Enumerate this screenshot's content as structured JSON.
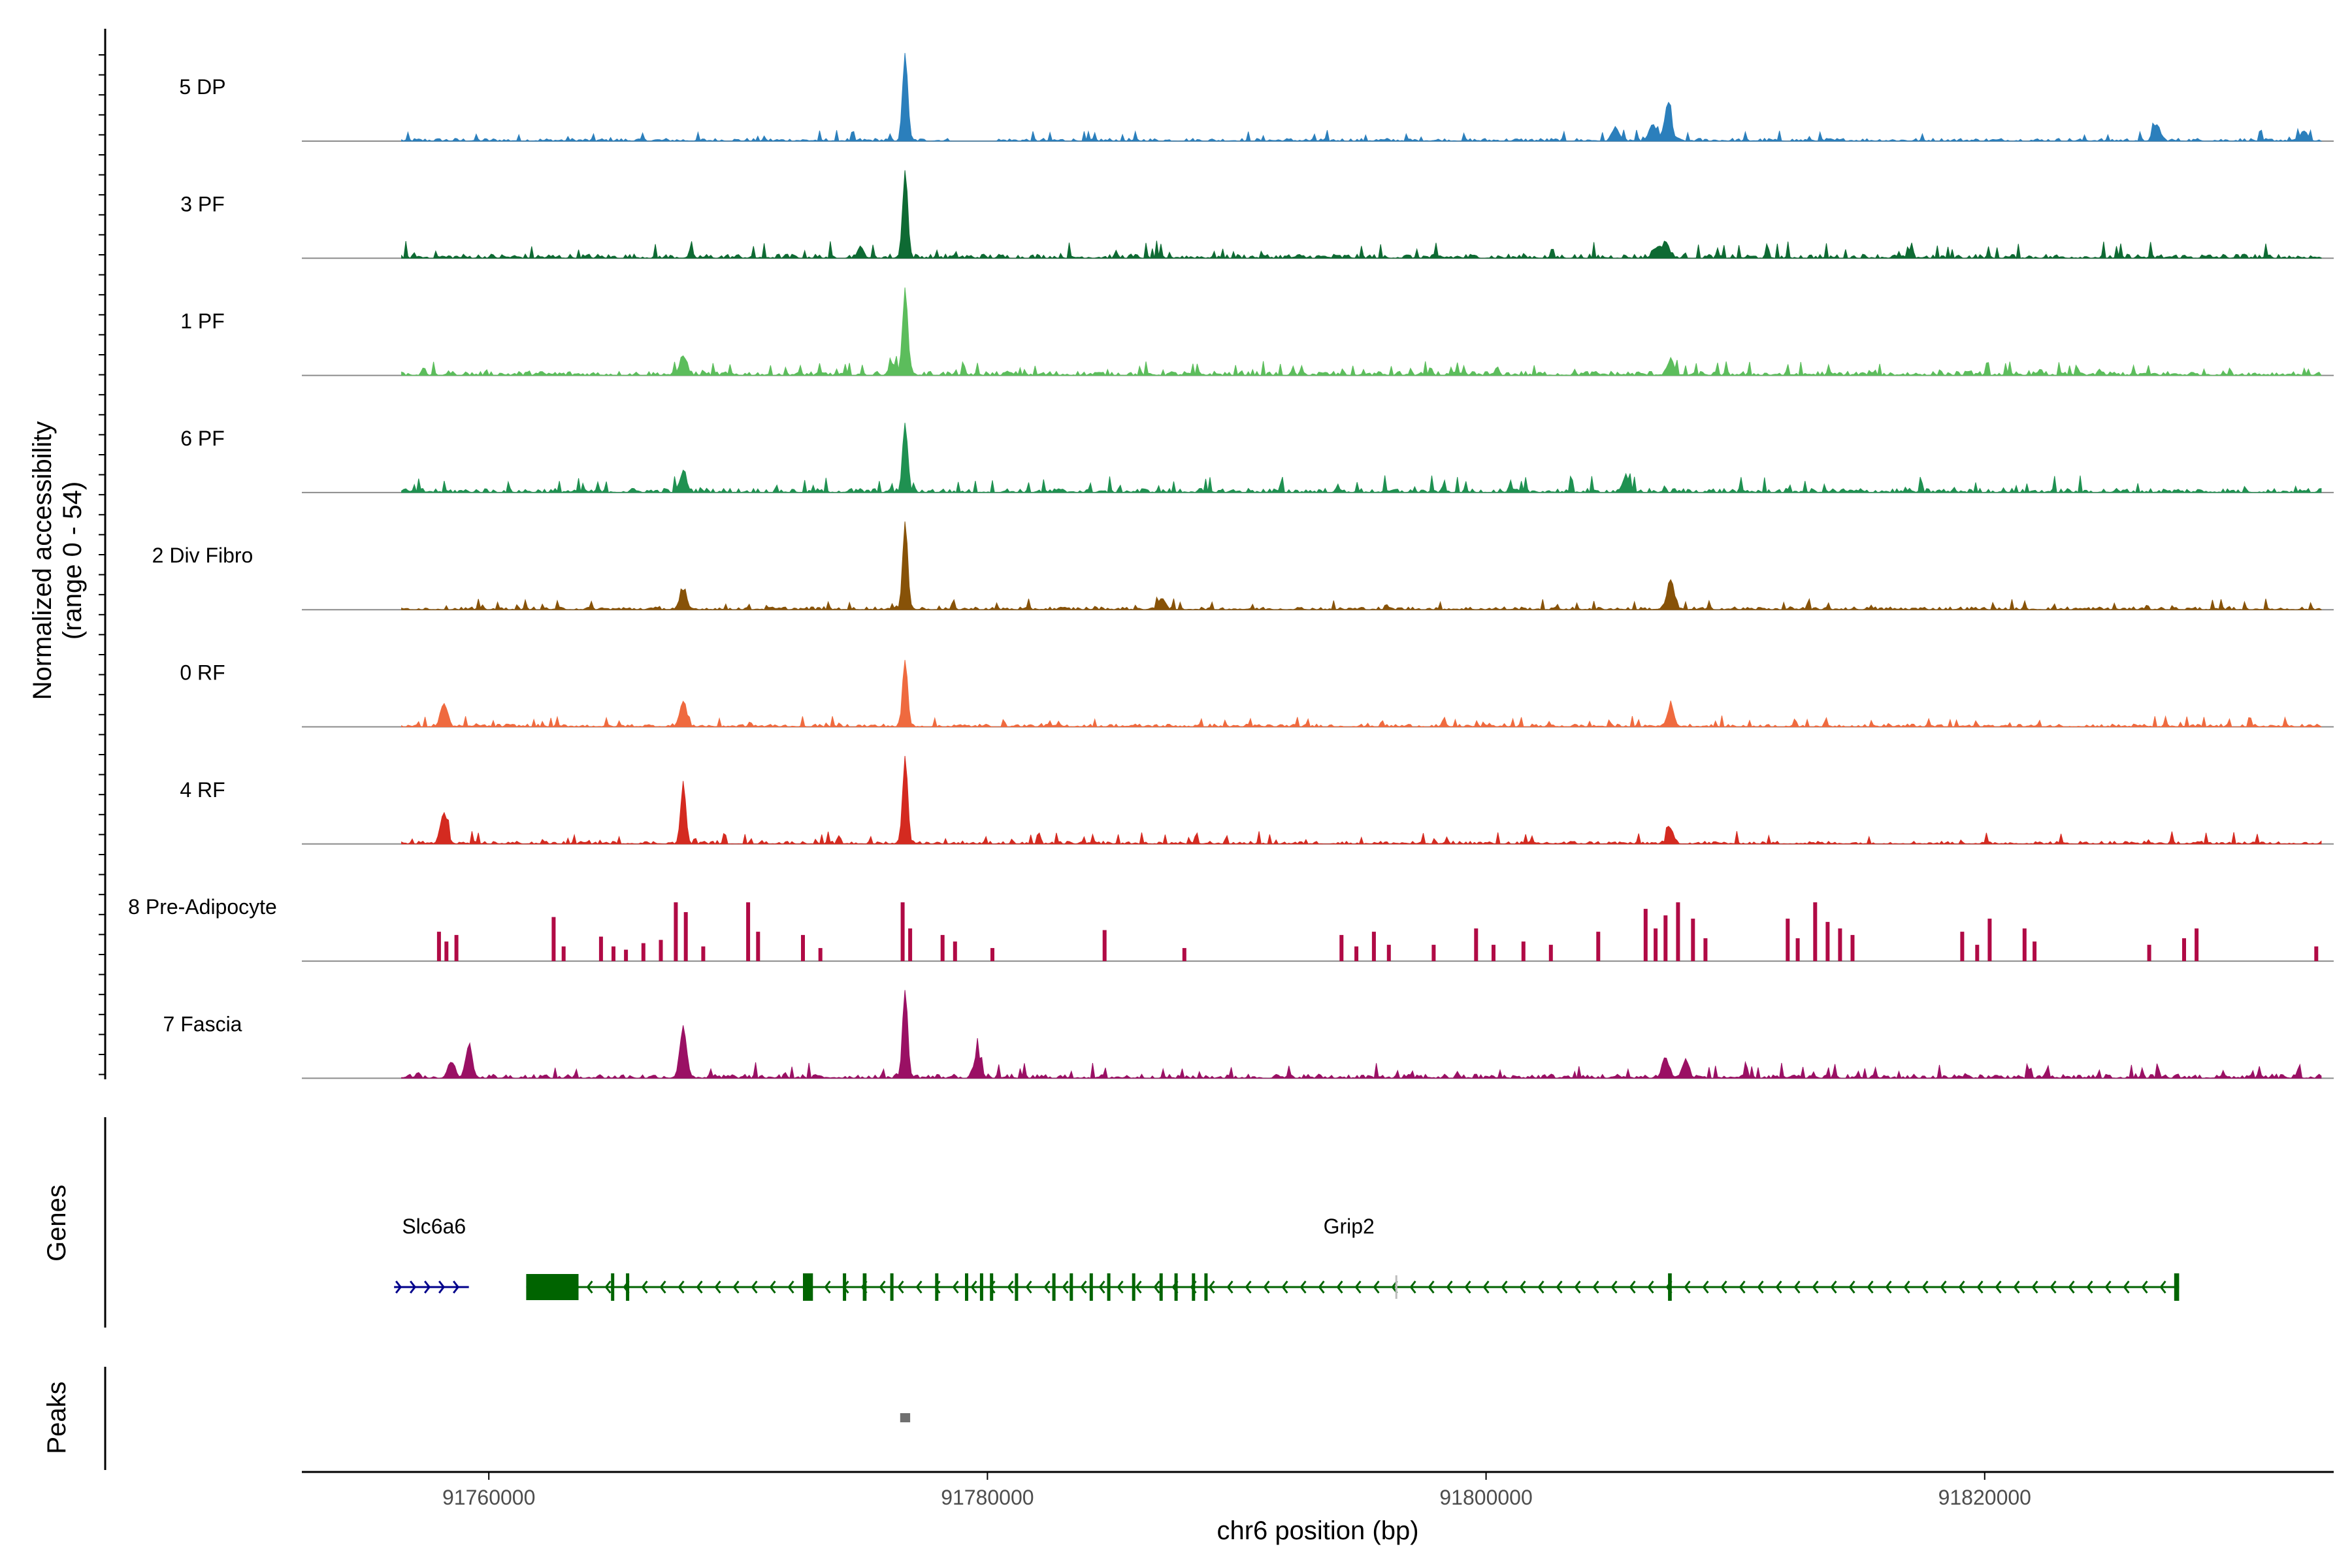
{
  "chart_data": {
    "type": "area",
    "title": "",
    "ylabel_line1": "Normalized accessibility",
    "ylabel_line2": "(range 0 - 54)",
    "xlabel": "chr6 position (bp)",
    "y_range": [
      0,
      54
    ],
    "xlim": [
      91752500,
      91834000
    ],
    "data_extent": [
      91756500,
      91833500
    ],
    "x_ticks": [
      {
        "value": 91760000,
        "label": "91760000"
      },
      {
        "value": 91780000,
        "label": "91780000"
      },
      {
        "value": 91800000,
        "label": "91800000"
      },
      {
        "value": 91820000,
        "label": "91820000"
      }
    ],
    "tracks": [
      {
        "name": "5 DP",
        "color": "#2b7fbc",
        "baseline": 2,
        "noise": 5,
        "gap": [
          91778500,
          91780200
        ],
        "peaks": [
          {
            "pos": 91776700,
            "height": 54
          },
          {
            "pos": 91807300,
            "height": 23
          },
          {
            "pos": 91806700,
            "height": 10
          },
          {
            "pos": 91805200,
            "height": 8
          },
          {
            "pos": 91826900,
            "height": 10
          },
          {
            "pos": 91832800,
            "height": 6
          }
        ]
      },
      {
        "name": "3 PF",
        "color": "#0e6a33",
        "baseline": 3,
        "noise": 8,
        "gap": [],
        "peaks": [
          {
            "pos": 91776700,
            "height": 54
          },
          {
            "pos": 91807200,
            "height": 10
          },
          {
            "pos": 91806800,
            "height": 6
          },
          {
            "pos": 91774900,
            "height": 5
          }
        ]
      },
      {
        "name": "1 PF",
        "color": "#5cbd5c",
        "baseline": 3,
        "noise": 6,
        "gap": [],
        "peaks": [
          {
            "pos": 91776700,
            "height": 54
          },
          {
            "pos": 91767800,
            "height": 12
          },
          {
            "pos": 91807400,
            "height": 9
          },
          {
            "pos": 91776200,
            "height": 7
          }
        ]
      },
      {
        "name": "6 PF",
        "color": "#1f9151",
        "baseline": 3,
        "noise": 8,
        "gap": [],
        "peaks": [
          {
            "pos": 91776700,
            "height": 42
          },
          {
            "pos": 91767800,
            "height": 12
          },
          {
            "pos": 91805600,
            "height": 9
          }
        ]
      },
      {
        "name": "2 Div Fibro",
        "color": "#875208",
        "baseline": 2,
        "noise": 5,
        "gap": [],
        "peaks": [
          {
            "pos": 91776700,
            "height": 54
          },
          {
            "pos": 91807400,
            "height": 18
          },
          {
            "pos": 91767800,
            "height": 10
          },
          {
            "pos": 91787000,
            "height": 7
          }
        ]
      },
      {
        "name": "0 RF",
        "color": "#ef6a3f",
        "baseline": 2,
        "noise": 5,
        "gap": [],
        "peaks": [
          {
            "pos": 91776700,
            "height": 40
          },
          {
            "pos": 91767800,
            "height": 15
          },
          {
            "pos": 91758200,
            "height": 14
          },
          {
            "pos": 91807400,
            "height": 12
          }
        ]
      },
      {
        "name": "4 RF",
        "color": "#d42a20",
        "baseline": 2,
        "noise": 6,
        "gap": [],
        "peaks": [
          {
            "pos": 91776700,
            "height": 54
          },
          {
            "pos": 91767800,
            "height": 37
          },
          {
            "pos": 91758200,
            "height": 19
          },
          {
            "pos": 91807400,
            "height": 8
          }
        ]
      },
      {
        "name": "8 Pre-Adipocyte",
        "color": "#b00a45",
        "baseline": 0,
        "noise": 0,
        "gap": [],
        "bars": [
          {
            "pos": 91758000,
            "height": 18
          },
          {
            "pos": 91758300,
            "height": 12
          },
          {
            "pos": 91758700,
            "height": 16
          },
          {
            "pos": 91762600,
            "height": 27
          },
          {
            "pos": 91763000,
            "height": 9
          },
          {
            "pos": 91764500,
            "height": 15
          },
          {
            "pos": 91765000,
            "height": 9
          },
          {
            "pos": 91765500,
            "height": 7
          },
          {
            "pos": 91766200,
            "height": 11
          },
          {
            "pos": 91766900,
            "height": 13
          },
          {
            "pos": 91767500,
            "height": 36
          },
          {
            "pos": 91767900,
            "height": 30
          },
          {
            "pos": 91768600,
            "height": 9
          },
          {
            "pos": 91770400,
            "height": 36
          },
          {
            "pos": 91770800,
            "height": 18
          },
          {
            "pos": 91772600,
            "height": 16
          },
          {
            "pos": 91773300,
            "height": 8
          },
          {
            "pos": 91776600,
            "height": 36
          },
          {
            "pos": 91776900,
            "height": 20
          },
          {
            "pos": 91778200,
            "height": 16
          },
          {
            "pos": 91778700,
            "height": 12
          },
          {
            "pos": 91780200,
            "height": 8
          },
          {
            "pos": 91784700,
            "height": 19
          },
          {
            "pos": 91787900,
            "height": 8
          },
          {
            "pos": 91794200,
            "height": 16
          },
          {
            "pos": 91794800,
            "height": 9
          },
          {
            "pos": 91795500,
            "height": 18
          },
          {
            "pos": 91796100,
            "height": 10
          },
          {
            "pos": 91797900,
            "height": 10
          },
          {
            "pos": 91799600,
            "height": 20
          },
          {
            "pos": 91800300,
            "height": 10
          },
          {
            "pos": 91801500,
            "height": 12
          },
          {
            "pos": 91802600,
            "height": 10
          },
          {
            "pos": 91804500,
            "height": 18
          },
          {
            "pos": 91806400,
            "height": 32
          },
          {
            "pos": 91806800,
            "height": 20
          },
          {
            "pos": 91807200,
            "height": 28
          },
          {
            "pos": 91807700,
            "height": 36
          },
          {
            "pos": 91808300,
            "height": 26
          },
          {
            "pos": 91808800,
            "height": 14
          },
          {
            "pos": 91812100,
            "height": 26
          },
          {
            "pos": 91812500,
            "height": 14
          },
          {
            "pos": 91813200,
            "height": 36
          },
          {
            "pos": 91813700,
            "height": 24
          },
          {
            "pos": 91814200,
            "height": 20
          },
          {
            "pos": 91814700,
            "height": 16
          },
          {
            "pos": 91819100,
            "height": 18
          },
          {
            "pos": 91819700,
            "height": 10
          },
          {
            "pos": 91820200,
            "height": 26
          },
          {
            "pos": 91821600,
            "height": 20
          },
          {
            "pos": 91822000,
            "height": 12
          },
          {
            "pos": 91826600,
            "height": 10
          },
          {
            "pos": 91828000,
            "height": 14
          },
          {
            "pos": 91828500,
            "height": 20
          },
          {
            "pos": 91833300,
            "height": 9
          }
        ]
      },
      {
        "name": "7 Fascia",
        "color": "#9a1064",
        "baseline": 3,
        "noise": 7,
        "gap": [],
        "peaks": [
          {
            "pos": 91776700,
            "height": 54
          },
          {
            "pos": 91767800,
            "height": 30
          },
          {
            "pos": 91759200,
            "height": 19
          },
          {
            "pos": 91758500,
            "height": 10
          },
          {
            "pos": 91779600,
            "height": 15
          },
          {
            "pos": 91807200,
            "height": 12
          },
          {
            "pos": 91808000,
            "height": 10
          }
        ]
      }
    ],
    "genes_label": "Genes",
    "peaks_label": "Peaks",
    "genes": [
      {
        "name": "Slc6a6",
        "start": 91756200,
        "end": 91759200,
        "strand": "+",
        "color": "#00008b",
        "label_pos": 91757800,
        "exons": []
      },
      {
        "name": "Grip2",
        "start": 91761500,
        "end": 91827800,
        "strand": "-",
        "color": "#006400",
        "label_pos": 91794500,
        "exons": [
          {
            "start": 91761500,
            "end": 91763600,
            "big": true
          },
          {
            "start": 91764900,
            "end": 91765000
          },
          {
            "start": 91765500,
            "end": 91765600
          },
          {
            "start": 91772600,
            "end": 91773000
          },
          {
            "start": 91774200,
            "end": 91774300
          },
          {
            "start": 91775000,
            "end": 91775150
          },
          {
            "start": 91776100,
            "end": 91776200
          },
          {
            "start": 91777900,
            "end": 91778000
          },
          {
            "start": 91779100,
            "end": 91779200
          },
          {
            "start": 91779700,
            "end": 91779780
          },
          {
            "start": 91780100,
            "end": 91780200
          },
          {
            "start": 91781100,
            "end": 91781200
          },
          {
            "start": 91782600,
            "end": 91782700
          },
          {
            "start": 91783300,
            "end": 91783400
          },
          {
            "start": 91784100,
            "end": 91784200
          },
          {
            "start": 91784800,
            "end": 91784900
          },
          {
            "start": 91785800,
            "end": 91785900
          },
          {
            "start": 91786900,
            "end": 91787000
          },
          {
            "start": 91787500,
            "end": 91787600
          },
          {
            "start": 91788200,
            "end": 91788300
          },
          {
            "start": 91788700,
            "end": 91788800
          },
          {
            "start": 91807300,
            "end": 91807450
          },
          {
            "start": 91827600,
            "end": 91827800
          }
        ]
      }
    ],
    "peak_regions": [
      {
        "start": 91776500,
        "end": 91776900
      }
    ]
  }
}
